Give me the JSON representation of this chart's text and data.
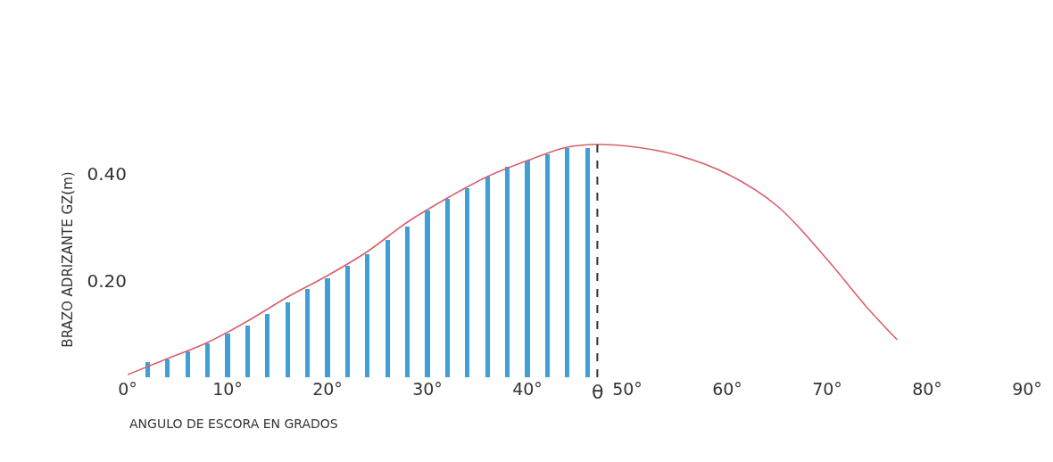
{
  "chart_data": {
    "type": "line",
    "xlabel": "ANGULO DE ESCORA EN GRADOS",
    "ylabel": "BRAZO ADRIZANTE GZ(m)",
    "xlim": [
      0,
      90
    ],
    "ylim": [
      0.02,
      0.46
    ],
    "xticks": [
      {
        "value": 0,
        "label": "0°"
      },
      {
        "value": 10,
        "label": "10°"
      },
      {
        "value": 20,
        "label": "20°"
      },
      {
        "value": 30,
        "label": "30°"
      },
      {
        "value": 40,
        "label": "40°"
      },
      {
        "value": 50,
        "label": "50°"
      },
      {
        "value": 60,
        "label": "60°"
      },
      {
        "value": 70,
        "label": "70°"
      },
      {
        "value": 80,
        "label": "80°"
      },
      {
        "value": 90,
        "label": "90°"
      }
    ],
    "yticks": [
      {
        "value": 0.2,
        "label": "0.20"
      },
      {
        "value": 0.4,
        "label": "0.40"
      }
    ],
    "series": [
      {
        "type": "bar",
        "color": "#3fa0d8",
        "x": [
          2,
          4,
          6,
          8,
          10,
          12,
          14,
          16,
          18,
          20,
          22,
          24,
          26,
          28,
          30,
          32,
          34,
          36,
          38,
          40,
          42,
          44,
          46
        ],
        "values": [
          0.048,
          0.053,
          0.068,
          0.083,
          0.102,
          0.117,
          0.138,
          0.16,
          0.185,
          0.205,
          0.228,
          0.25,
          0.277,
          0.302,
          0.332,
          0.353,
          0.373,
          0.395,
          0.413,
          0.425,
          0.437,
          0.448,
          0.448
        ]
      },
      {
        "color": "#d9606a",
        "x": [
          0,
          4,
          8,
          12,
          16,
          20,
          24,
          28,
          32,
          36,
          40,
          44,
          47,
          50,
          55,
          60,
          65,
          70,
          74,
          77
        ],
        "values": [
          0.025,
          0.055,
          0.085,
          0.125,
          0.17,
          0.21,
          0.255,
          0.31,
          0.355,
          0.395,
          0.425,
          0.45,
          0.455,
          0.452,
          0.435,
          0.4,
          0.34,
          0.24,
          0.15,
          0.09
        ]
      }
    ],
    "ref_lines": [
      {
        "axis": "x",
        "value": 47,
        "label": "θ",
        "color": "#333333",
        "line_style": "dashed"
      }
    ]
  }
}
